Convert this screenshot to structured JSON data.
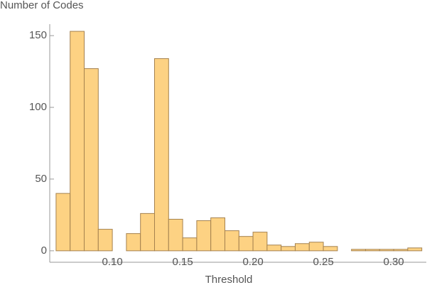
{
  "chart_data": {
    "type": "histogram",
    "x_label": "Threshold",
    "y_label": "Number of Codes",
    "bins": [
      0.06,
      0.07,
      0.08,
      0.09,
      0.1,
      0.11,
      0.12,
      0.13,
      0.14,
      0.15,
      0.16,
      0.17,
      0.18,
      0.19,
      0.2,
      0.21,
      0.22,
      0.23,
      0.24,
      0.25,
      0.26,
      0.27,
      0.28,
      0.29,
      0.3,
      0.31,
      0.32
    ],
    "counts": [
      40,
      153,
      127,
      15,
      0,
      12,
      26,
      134,
      22,
      9,
      21,
      23,
      14,
      10,
      13,
      4,
      3,
      5,
      6,
      3,
      0,
      1,
      1,
      1,
      1,
      2
    ],
    "color": "#fdd283",
    "edge_color": "#a5824f",
    "xlim": [
      0.0555,
      0.3232
    ],
    "ylim": [
      -8,
      158
    ],
    "xticks": [
      {
        "value": 0.1,
        "label": "0.10"
      },
      {
        "value": 0.15,
        "label": "0.15"
      },
      {
        "value": 0.2,
        "label": "0.20"
      },
      {
        "value": 0.25,
        "label": "0.25"
      },
      {
        "value": 0.3,
        "label": "0.30"
      }
    ],
    "yticks": [
      0,
      50,
      100,
      150
    ]
  }
}
